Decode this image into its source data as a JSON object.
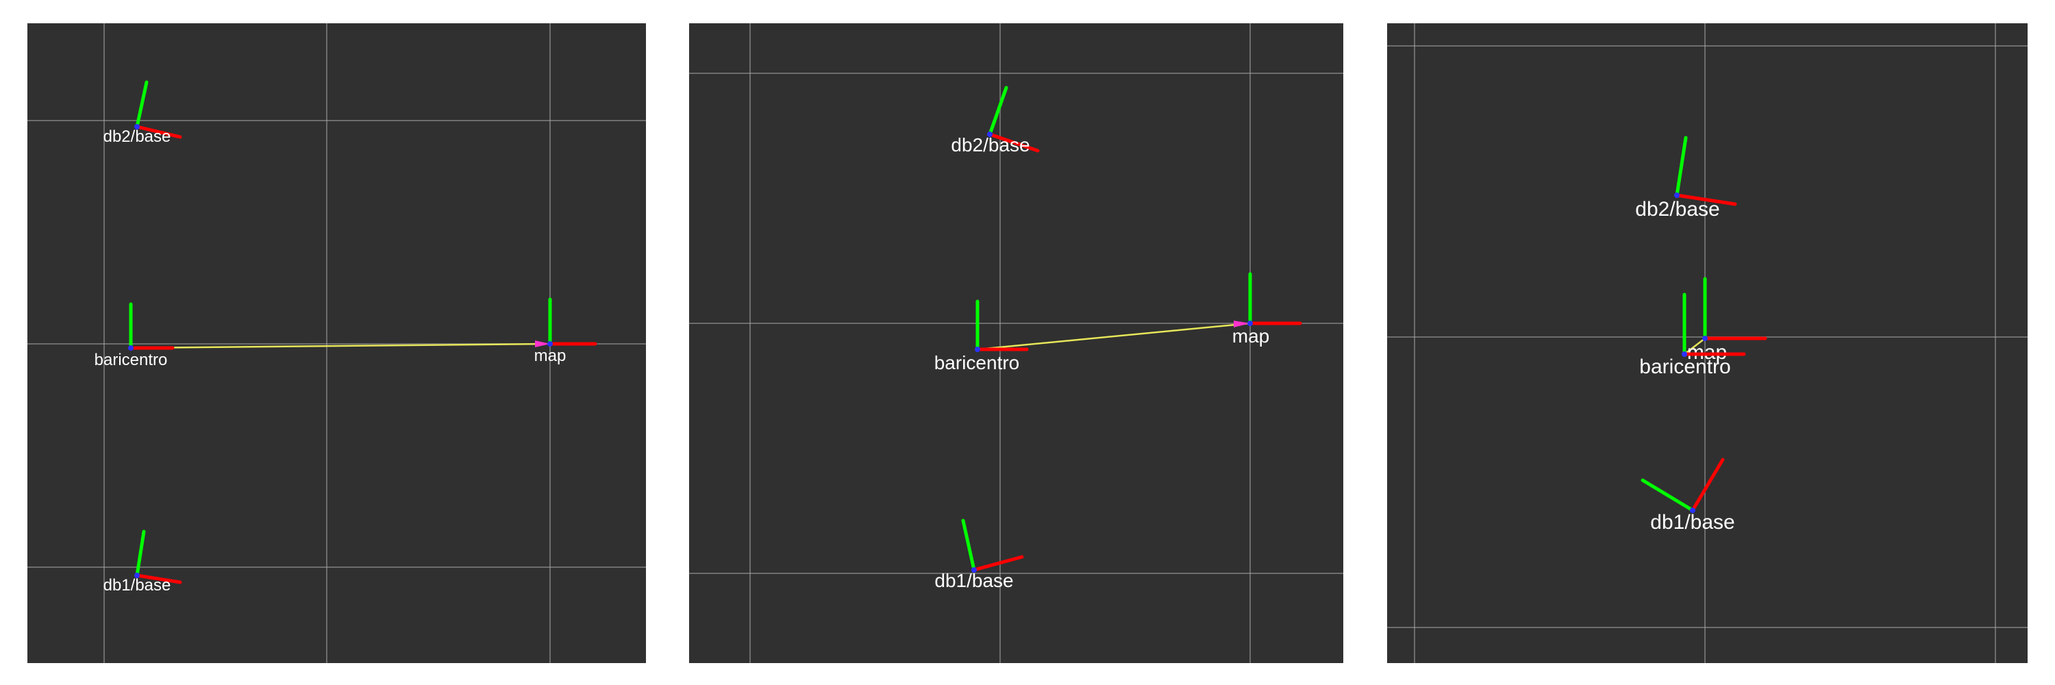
{
  "colors": {
    "background": "#ffffff",
    "viewport": "#303030",
    "grid": "#a0a0a0",
    "axis_x": "#ff0000",
    "axis_y": "#00ff00",
    "link": "#e6e65a",
    "origin": "#2a32ff",
    "label": "#ffffff"
  },
  "panels": [
    {
      "frames": [
        {
          "name": "db2/base"
        },
        {
          "name": "baricentro"
        },
        {
          "name": "map"
        },
        {
          "name": "db1/base"
        }
      ],
      "links": [
        {
          "from": "baricentro",
          "to": "map"
        }
      ]
    },
    {
      "frames": [
        {
          "name": "db2/base"
        },
        {
          "name": "baricentro"
        },
        {
          "name": "map"
        },
        {
          "name": "db1/base"
        }
      ],
      "links": [
        {
          "from": "baricentro",
          "to": "map"
        }
      ]
    },
    {
      "frames": [
        {
          "name": "db2/base"
        },
        {
          "name": "map"
        },
        {
          "name": "baricentro"
        },
        {
          "name": "db1/base"
        }
      ],
      "links": [
        {
          "from": "baricentro",
          "to": "map"
        }
      ]
    }
  ]
}
